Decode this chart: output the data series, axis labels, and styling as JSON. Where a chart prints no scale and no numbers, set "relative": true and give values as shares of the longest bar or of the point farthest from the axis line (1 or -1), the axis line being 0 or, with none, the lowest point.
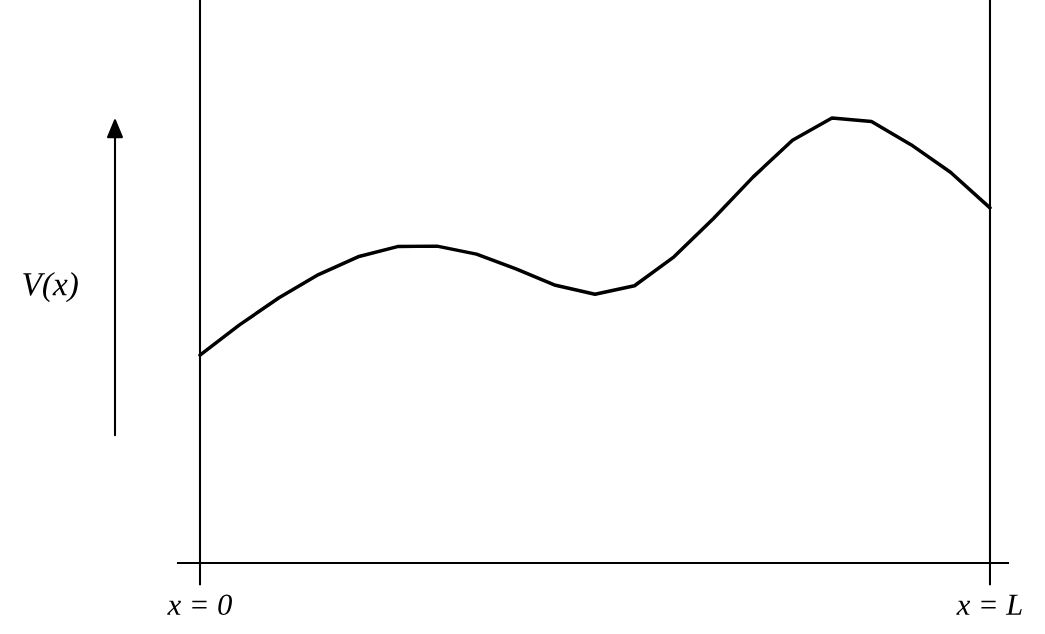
{
  "chart_data": {
    "type": "line",
    "relative": true,
    "ylabel": "V(x)",
    "categories": [
      null,
      null,
      null,
      null,
      null,
      null,
      null,
      null,
      null,
      null,
      null,
      null,
      null,
      null,
      null,
      null,
      null,
      null,
      null,
      null,
      null
    ],
    "series": [
      {
        "color": "#000000",
        "values": [
          0.467,
          0.535,
          0.596,
          0.648,
          0.688,
          0.711,
          0.712,
          0.694,
          0.661,
          0.624,
          0.604,
          0.623,
          0.688,
          0.774,
          0.867,
          0.95,
          1.0,
          0.992,
          0.94,
          0.878,
          0.798
        ]
      }
    ],
    "annotations": [
      "x = 0",
      "x = L"
    ],
    "legend": false,
    "marker": "none",
    "line_style": "solid"
  }
}
